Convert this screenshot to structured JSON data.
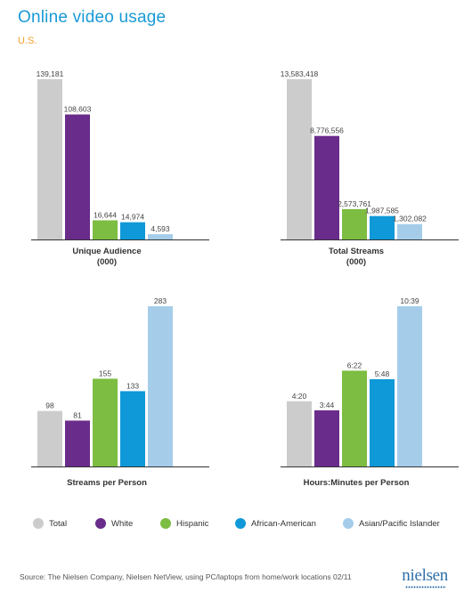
{
  "title": "Online video usage",
  "subtitle": "U.S.",
  "colors": {
    "title": "#1a9ad6",
    "subtitle": "#f2a12b",
    "total": "#cccccc",
    "white": "#6a2c8b",
    "hispanic": "#7cbd42",
    "african_american": "#0f99d8",
    "asian_pacific_islander": "#a5cdea"
  },
  "legend": [
    {
      "name": "Total",
      "color": "#cccccc"
    },
    {
      "name": "White",
      "color": "#6a2c8b"
    },
    {
      "name": "Hispanic",
      "color": "#7cbd42"
    },
    {
      "name": "African-American",
      "color": "#0f99d8"
    },
    {
      "name": "Asian/Pacific Islander",
      "color": "#a5cdea"
    }
  ],
  "chart_data": [
    {
      "type": "bar",
      "title": "Unique Audience",
      "subtitle": "(000)",
      "categories": [
        "Total",
        "White",
        "Hispanic",
        "African-American",
        "Asian/Pacific Islander"
      ],
      "values": [
        139181,
        108603,
        16644,
        14974,
        4593
      ],
      "labels": [
        "139,181",
        "108,603",
        "16,644",
        "14,974",
        "4,593"
      ],
      "ylim": [
        0,
        139181
      ]
    },
    {
      "type": "bar",
      "title": "Total Streams",
      "subtitle": "(000)",
      "categories": [
        "Total",
        "White",
        "Hispanic",
        "African-American",
        "Asian/Pacific Islander"
      ],
      "values": [
        13583418,
        8776556,
        2573761,
        1987585,
        1302082
      ],
      "labels": [
        "13,583,418",
        "8,776,556",
        "2,573,761",
        "1,987,585",
        "1,302,082"
      ],
      "ylim": [
        0,
        13583418
      ]
    },
    {
      "type": "bar",
      "title": "Streams per Person",
      "subtitle": "",
      "categories": [
        "Total",
        "White",
        "Hispanic",
        "African-American",
        "Asian/Pacific Islander"
      ],
      "values": [
        98,
        81,
        155,
        133,
        283
      ],
      "labels": [
        "98",
        "81",
        "155",
        "133",
        "283"
      ],
      "ylim": [
        0,
        283
      ]
    },
    {
      "type": "bar",
      "title": "Hours:Minutes per Person",
      "subtitle": "",
      "categories": [
        "Total",
        "White",
        "Hispanic",
        "African-American",
        "Asian/Pacific Islander"
      ],
      "values": [
        260,
        224,
        382,
        348,
        639
      ],
      "labels": [
        "4:20",
        "3:44",
        "6:22",
        "5:48",
        "10:39"
      ],
      "ylim": [
        0,
        639
      ]
    }
  ],
  "source": "Source: The Nielsen Company, Nielsen NetView, using PC/laptops from home/work locations  02/11",
  "logo": "nielsen"
}
